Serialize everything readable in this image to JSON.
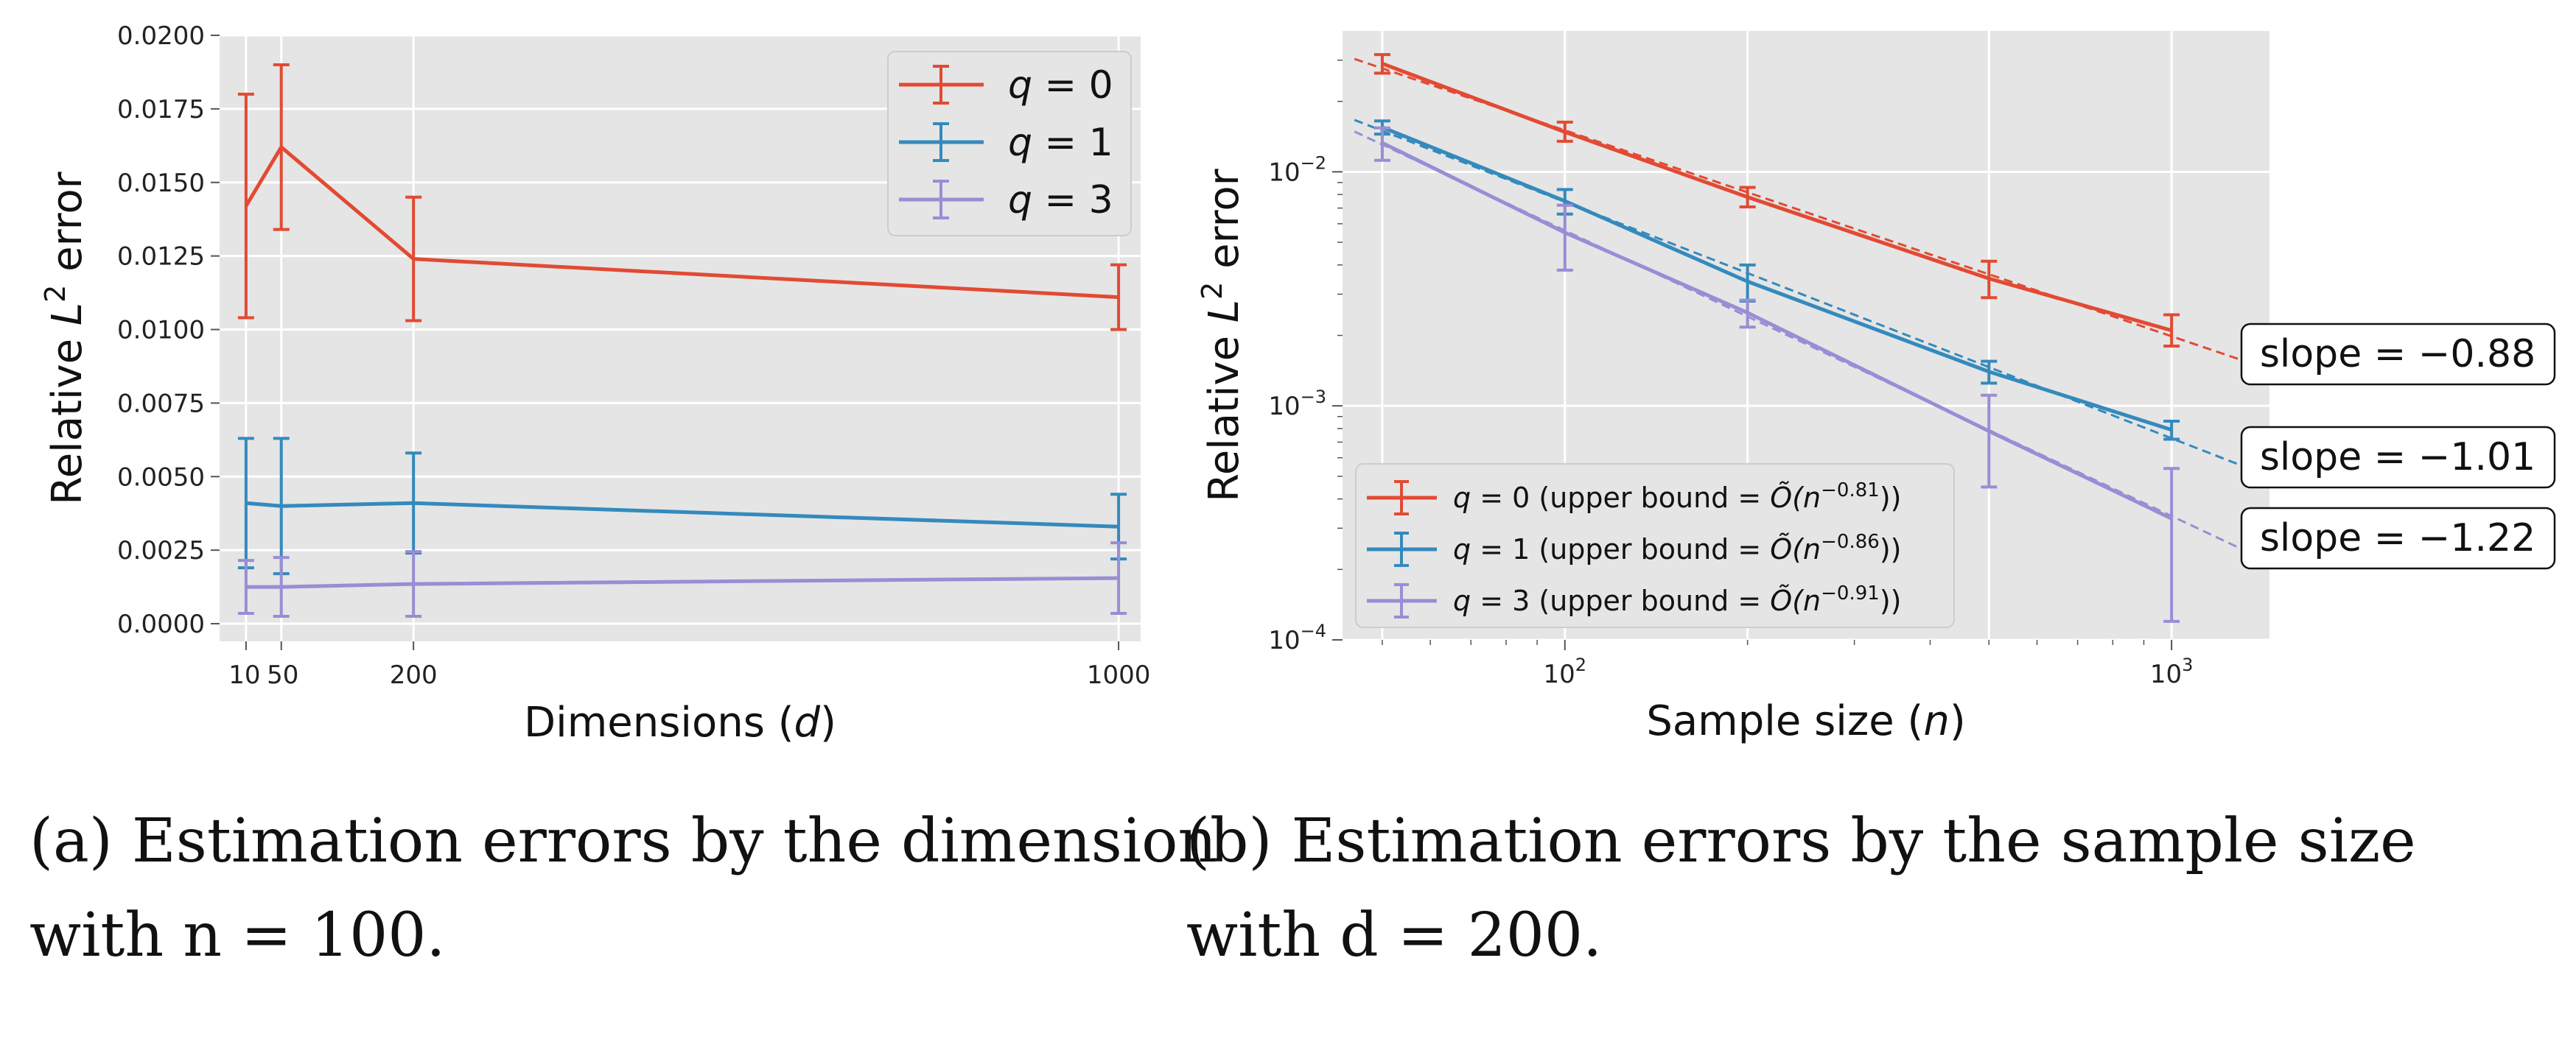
{
  "chart_data": [
    {
      "type": "line",
      "xlabel_prefix": "Dimensions (",
      "xlabel_var": "d",
      "xlabel_suffix": ")",
      "ylabel": "Relative L² error",
      "ylabel_pre": "Relative ",
      "ylabel_var": "L",
      "ylabel_sup": "2",
      "ylabel_post": " error",
      "xlim": [
        -20,
        1025
      ],
      "ylim": [
        -0.0006,
        0.02
      ],
      "x_ticks": [
        10,
        50,
        200,
        1000
      ],
      "x_tick_labels": [
        "10",
        "50",
        "200",
        "1000"
      ],
      "y_ticks": [
        0.0,
        0.0025,
        0.005,
        0.0075,
        0.01,
        0.0125,
        0.015,
        0.0175,
        0.02
      ],
      "y_tick_labels": [
        "0.0000",
        "0.0025",
        "0.0050",
        "0.0075",
        "0.0100",
        "0.0125",
        "0.0150",
        "0.0175",
        "0.0200"
      ],
      "grid": true,
      "legend": "top-right",
      "series": [
        {
          "q_label": "q",
          "q_value": "= 0",
          "color": "#e24a33",
          "x": [
            10,
            50,
            200,
            1000
          ],
          "y": [
            0.0142,
            0.0162,
            0.0124,
            0.0111
          ],
          "err": [
            0.0038,
            0.0028,
            0.0021,
            0.0011
          ]
        },
        {
          "q_label": "q",
          "q_value": "= 1",
          "color": "#348abd",
          "x": [
            10,
            50,
            200,
            1000
          ],
          "y": [
            0.0041,
            0.004,
            0.0041,
            0.0033
          ],
          "err": [
            0.0022,
            0.0023,
            0.0017,
            0.0011
          ]
        },
        {
          "q_label": "q",
          "q_value": "= 3",
          "color": "#988ed5",
          "x": [
            10,
            50,
            200,
            1000
          ],
          "y": [
            0.00125,
            0.00125,
            0.00135,
            0.00155
          ],
          "err": [
            0.0009,
            0.001,
            0.0011,
            0.0012
          ]
        }
      ],
      "caption_line1": "(a) Estimation errors by the dimension",
      "caption_line2": "with n = 100."
    },
    {
      "type": "line",
      "xscale": "log",
      "yscale": "log",
      "xlabel_prefix": "Sample size (",
      "xlabel_var": "n",
      "xlabel_suffix": ")",
      "ylabel": "Relative L² error",
      "ylabel_pre": "Relative ",
      "ylabel_var": "L",
      "ylabel_sup": "2",
      "ylabel_post": " error",
      "xlim": [
        43,
        1450
      ],
      "ylim": [
        0.0001,
        0.04
      ],
      "x_ticks_major": [
        100,
        1000
      ],
      "x_tick_labels": [
        {
          "base": "10",
          "exp": "2"
        },
        {
          "base": "10",
          "exp": "3"
        }
      ],
      "y_ticks_major": [
        0.0001,
        0.001,
        0.01
      ],
      "y_tick_labels": [
        {
          "base": "10",
          "exp": "−4"
        },
        {
          "base": "10",
          "exp": "−3"
        },
        {
          "base": "10",
          "exp": "−2"
        }
      ],
      "grid": true,
      "legend": "lower-left",
      "series": [
        {
          "q_label": "q",
          "q_value": "= 0",
          "bound_text": " (upper bound ",
          "bound_sym": "= Õ(n",
          "bound_exp": "−0.81",
          "bound_close": "))",
          "color": "#e24a33",
          "x": [
            50,
            100,
            200,
            500,
            1000
          ],
          "y": [
            0.029,
            0.0148,
            0.0078,
            0.0035,
            0.0021
          ],
          "err_low": [
            0.0026,
            0.0013,
            0.00072,
            0.0006,
            0.0003
          ],
          "err_high": [
            0.0027,
            0.0015,
            0.00078,
            0.00065,
            0.00035
          ],
          "fit_slope": -0.88,
          "fit_x": [
            45,
            1300
          ],
          "slope_label": "slope = −0.88"
        },
        {
          "q_label": "q",
          "q_value": "= 1",
          "bound_text": " (upper bound ",
          "bound_sym": "= Õ(n",
          "bound_exp": "−0.86",
          "bound_close": "))",
          "color": "#348abd",
          "x": [
            50,
            100,
            200,
            500,
            1000
          ],
          "y": [
            0.0155,
            0.0075,
            0.0034,
            0.0014,
            0.00079
          ],
          "err_low": [
            0.001,
            0.0009,
            0.0006,
            0.00015,
            7e-05
          ],
          "err_high": [
            0.001,
            0.0009,
            0.0006,
            0.00015,
            7e-05
          ],
          "fit_slope": -1.01,
          "fit_x": [
            45,
            1300
          ],
          "slope_label": "slope = −1.01"
        },
        {
          "q_label": "q",
          "q_value": "= 3",
          "bound_text": " (upper bound ",
          "bound_sym": "= Õ(n",
          "bound_exp": "−0.91",
          "bound_close": "))",
          "color": "#988ed5",
          "x": [
            50,
            100,
            200,
            500,
            1000
          ],
          "y": [
            0.0133,
            0.0055,
            0.0025,
            0.00078,
            0.00033
          ],
          "err_low": [
            0.0021,
            0.0017,
            0.00033,
            0.00033,
            0.00021
          ],
          "err_high": [
            0.0021,
            0.0017,
            0.00033,
            0.00033,
            0.00021
          ],
          "fit_slope": -1.22,
          "fit_x": [
            45,
            1300
          ],
          "slope_label": "slope = −1.22"
        }
      ],
      "caption_line1": "(b) Estimation errors by the sample size",
      "caption_line2": "with d = 200."
    }
  ]
}
